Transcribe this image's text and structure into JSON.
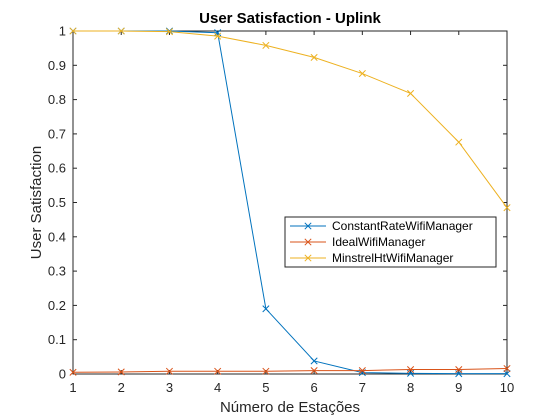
{
  "chart_data": {
    "type": "line",
    "title": "User Satisfaction - Uplink",
    "xlabel": "Número de Estações",
    "ylabel": "User Satisfaction",
    "x": [
      1,
      2,
      3,
      4,
      5,
      6,
      7,
      8,
      9,
      10
    ],
    "xlim": [
      1,
      10
    ],
    "ylim": [
      0,
      1
    ],
    "xticks": [
      "1",
      "2",
      "3",
      "4",
      "5",
      "6",
      "7",
      "8",
      "9",
      "10"
    ],
    "yticks": [
      "0",
      "0.1",
      "0.2",
      "0.3",
      "0.4",
      "0.5",
      "0.6",
      "0.7",
      "0.8",
      "0.9",
      "1"
    ],
    "grid": false,
    "legend_position": "center-right",
    "marker": "x",
    "series": [
      {
        "name": "ConstantRateWifiManager",
        "color": "#0072BD",
        "values": [
          1.0,
          1.0,
          1.0,
          0.995,
          0.19,
          0.038,
          0.004,
          0.002,
          0.001,
          0.001
        ]
      },
      {
        "name": "IdealWifiManager",
        "color": "#D95319",
        "values": [
          0.005,
          0.006,
          0.008,
          0.008,
          0.008,
          0.01,
          0.01,
          0.013,
          0.013,
          0.016
        ]
      },
      {
        "name": "MinstrelHtWifiManager",
        "color": "#EDB120",
        "values": [
          1.0,
          1.0,
          0.998,
          0.985,
          0.958,
          0.923,
          0.876,
          0.818,
          0.676,
          0.485
        ]
      }
    ]
  }
}
